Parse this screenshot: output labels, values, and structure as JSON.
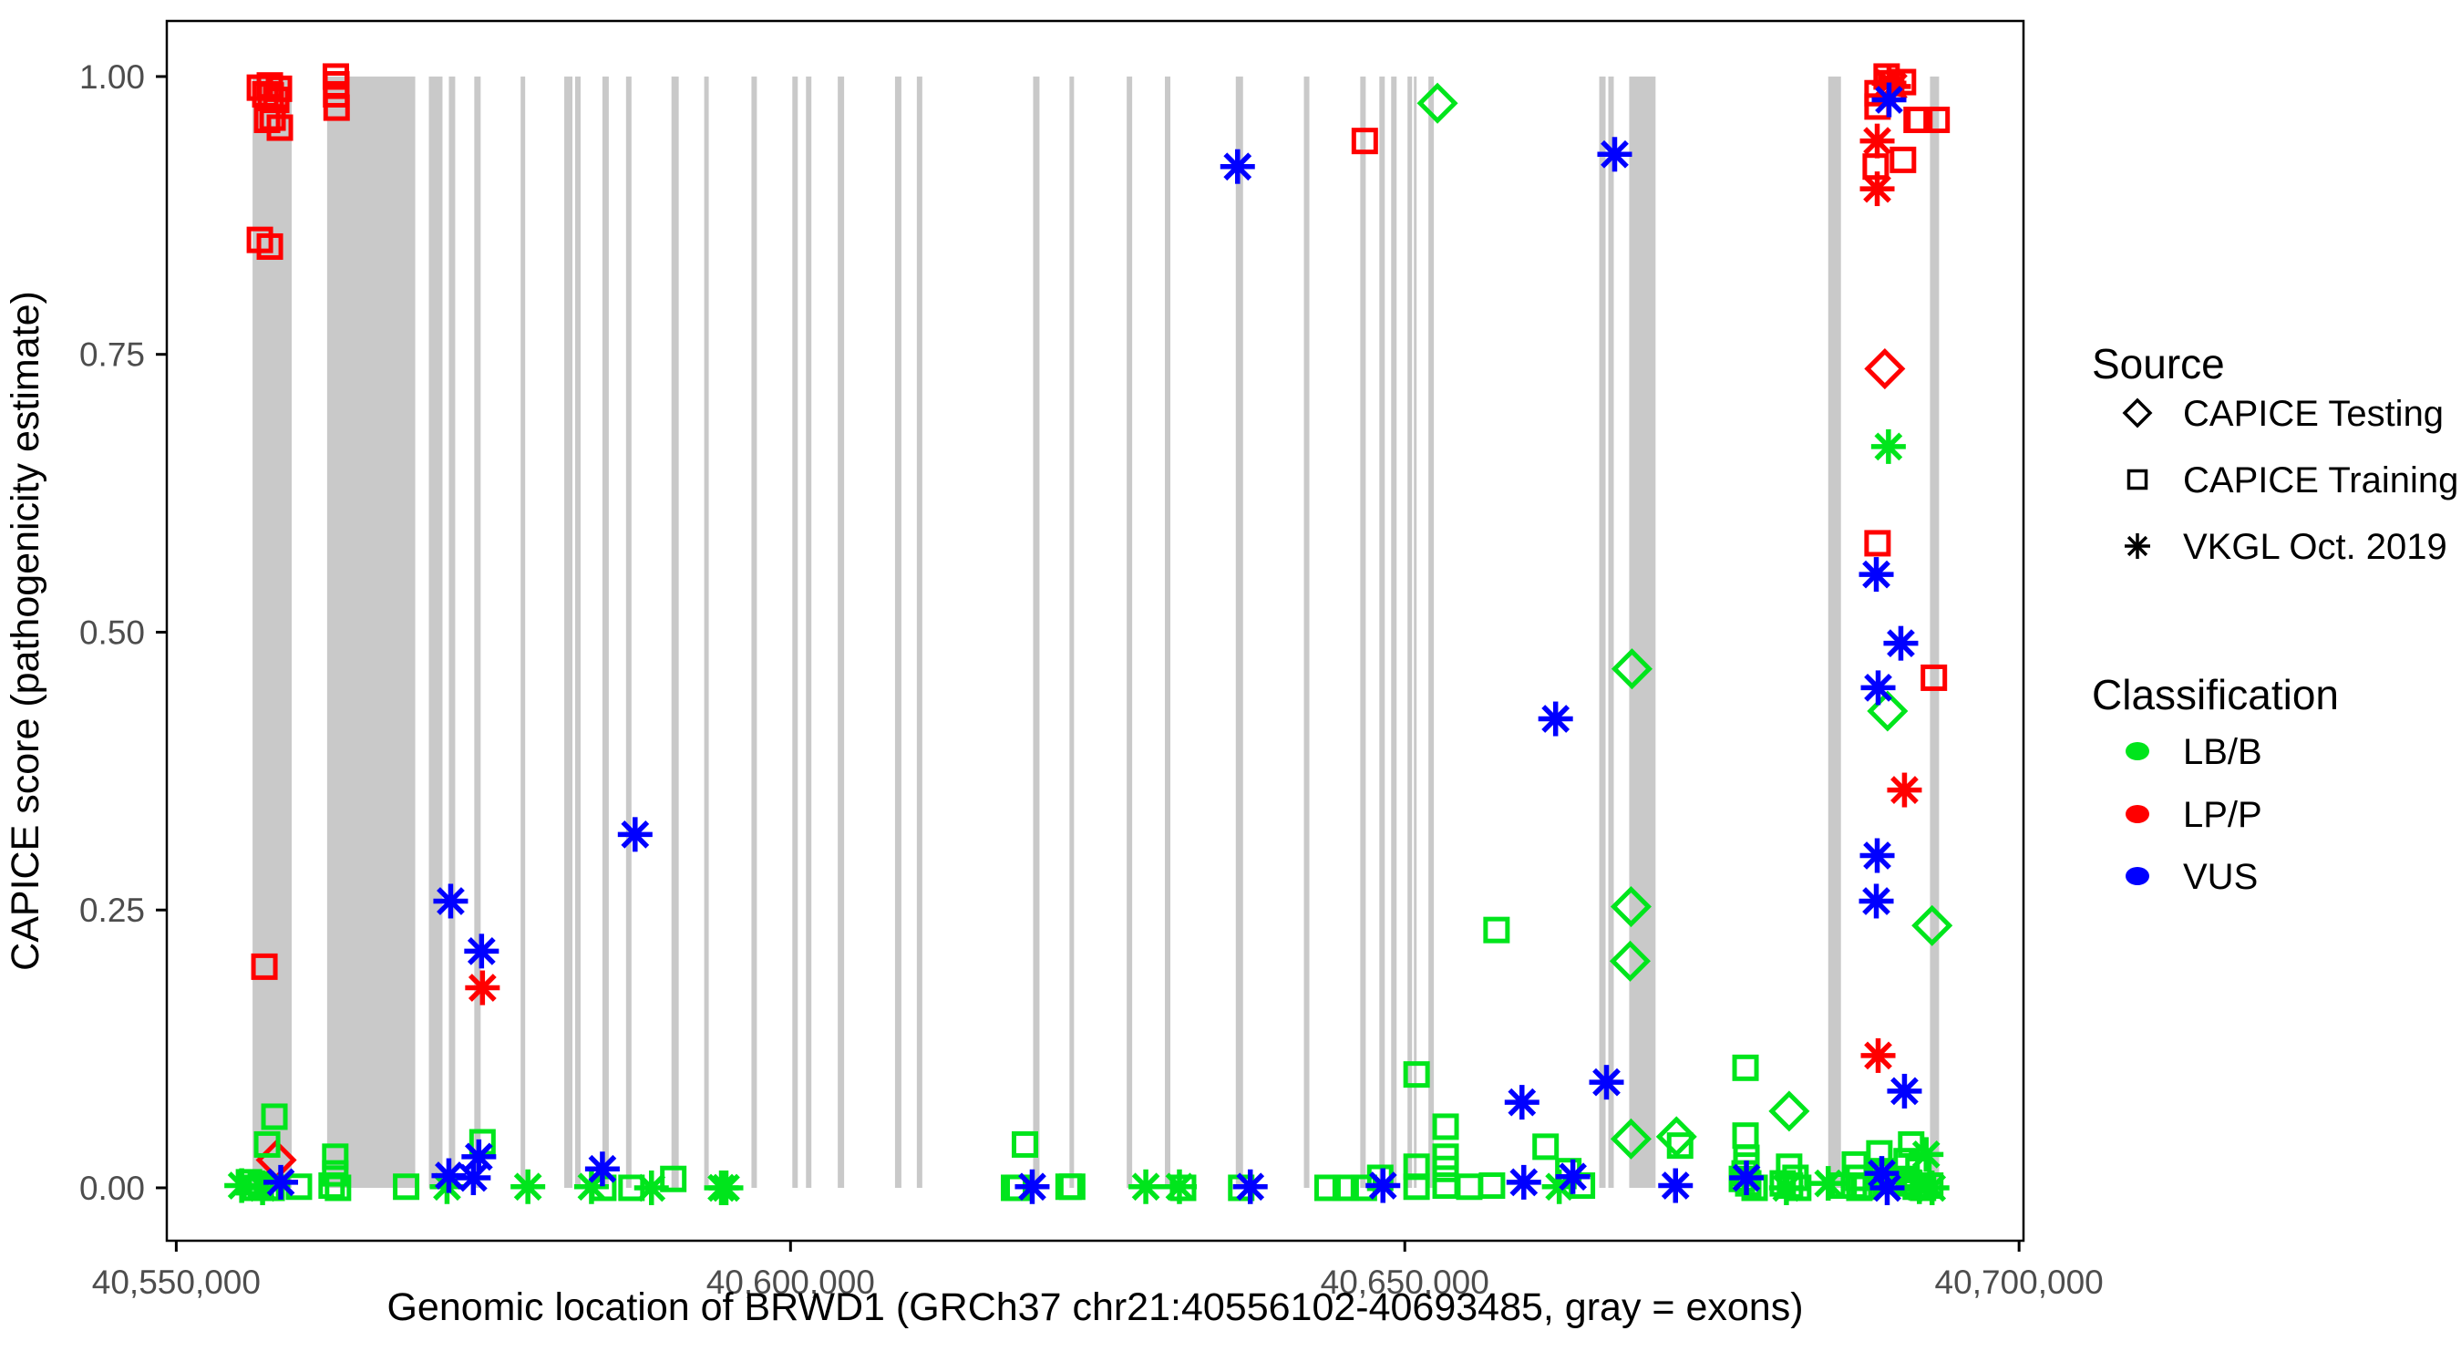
{
  "colors": {
    "lbb": "#00e51c",
    "lpp": "#ff0000",
    "vus": "#0000ff",
    "exon": "#c9c9c9",
    "axis_text": "#4d4d4d",
    "axis_line": "#000000",
    "background": "#ffffff"
  },
  "legend": {
    "source": {
      "title": "Source",
      "items": [
        {
          "label": "CAPICE Testing",
          "marker": "diamond"
        },
        {
          "label": "CAPICE Training",
          "marker": "square"
        },
        {
          "label": "VKGL Oct. 2019",
          "marker": "asterisk"
        }
      ]
    },
    "classification": {
      "title": "Classification",
      "items": [
        {
          "label": "LB/B",
          "color_key": "lbb"
        },
        {
          "label": "LP/P",
          "color_key": "lpp"
        },
        {
          "label": "VUS",
          "color_key": "vus"
        }
      ]
    }
  },
  "chart_data": {
    "type": "scatter",
    "title": "",
    "xlabel": "Genomic location of BRWD1 (GRCh37 chr21:40556102-40693485, gray = exons)",
    "ylabel": "CAPICE score (pathogenicity estimate)",
    "x_axis": {
      "min": 40549230,
      "max": 40700360,
      "ticks": [
        40550000,
        40600000,
        40650000,
        40700000
      ],
      "tick_labels": [
        "40,550,000",
        "40,600,000",
        "40,650,000",
        "40,700,000"
      ]
    },
    "y_axis": {
      "min": -0.0476,
      "max": 1.05,
      "ticks": [
        0.0,
        0.25,
        0.5,
        0.75,
        1.0
      ],
      "tick_labels": [
        "0.00",
        "0.25",
        "0.50",
        "0.75",
        "1.00"
      ]
    },
    "exons_note": "gray vertical bands span score 0 to 1",
    "exons": [
      [
        40556213,
        40559394
      ],
      [
        40562278,
        40569452
      ],
      [
        40570561,
        40571671
      ],
      [
        40572189,
        40572706
      ],
      [
        40574259,
        40574777
      ],
      [
        40578031,
        40578401
      ],
      [
        40581581,
        40582247
      ],
      [
        40582469,
        40582913
      ],
      [
        40584688,
        40585206
      ],
      [
        40586611,
        40587055
      ],
      [
        40590309,
        40590901
      ],
      [
        40592972,
        40593342
      ],
      [
        40596818,
        40597261
      ],
      [
        40600147,
        40600590
      ],
      [
        40601256,
        40601700
      ],
      [
        40603845,
        40604363
      ],
      [
        40608505,
        40609023
      ],
      [
        40610280,
        40610724
      ],
      [
        40619747,
        40620265
      ],
      [
        40622706,
        40623076
      ],
      [
        40627366,
        40627810
      ],
      [
        40630473,
        40630917
      ],
      [
        40636242,
        40636834
      ],
      [
        40641789,
        40642233
      ],
      [
        40646375,
        40646819
      ],
      [
        40647928,
        40648372
      ],
      [
        40648890,
        40649334
      ],
      [
        40650221,
        40650591
      ],
      [
        40650739,
        40650961
      ],
      [
        40651922,
        40652366
      ],
      [
        40665826,
        40666344
      ],
      [
        40666566,
        40667010
      ],
      [
        40668267,
        40670412
      ],
      [
        40684466,
        40685502
      ],
      [
        40692750,
        40693490
      ]
    ],
    "series": [
      {
        "name": "CAPICE Testing",
        "classification": "LB/B",
        "marker": "diamond",
        "color_key": "lbb",
        "points": [
          [
            40652660,
            0.976
          ],
          [
            40668490,
            0.467
          ],
          [
            40668416,
            0.253
          ],
          [
            40668342,
            0.204
          ],
          [
            40668416,
            0.044
          ],
          [
            40672112,
            0.046
          ],
          [
            40681284,
            0.069
          ],
          [
            40689295,
            0.429
          ],
          [
            40692919,
            0.236
          ]
        ]
      },
      {
        "name": "CAPICE Testing",
        "classification": "LP/P",
        "marker": "diamond",
        "color_key": "lpp",
        "points": [
          [
            40558136,
            0.025
          ],
          [
            40689073,
            0.737
          ]
        ]
      },
      {
        "name": "CAPICE Training",
        "classification": "LB/B",
        "marker": "square",
        "color_key": "lbb",
        "points": [
          [
            40557988,
            0.064
          ],
          [
            40557396,
            0.039
          ],
          [
            40555917,
            0.005
          ],
          [
            40556435,
            0.0
          ],
          [
            40556879,
            0.003
          ],
          [
            40557396,
            0.0
          ],
          [
            40557766,
            0.0
          ],
          [
            40559985,
            0.001
          ],
          [
            40562943,
            0.028
          ],
          [
            40562943,
            0.013
          ],
          [
            40562647,
            0.002
          ],
          [
            40563165,
            0.0
          ],
          [
            40568712,
            0.001
          ],
          [
            40574925,
            0.041
          ],
          [
            40584761,
            0.0
          ],
          [
            40587055,
            0.0
          ],
          [
            40590457,
            0.008
          ],
          [
            40619081,
            0.039
          ],
          [
            40618194,
            0.0
          ],
          [
            40618564,
            0.0
          ],
          [
            40622632,
            0.001
          ],
          [
            40622928,
            0.001
          ],
          [
            40631952,
            0.0
          ],
          [
            40636685,
            0.0
          ],
          [
            40643711,
            0.0
          ],
          [
            40645190,
            0.0
          ],
          [
            40646669,
            0.0
          ],
          [
            40648000,
            0.009
          ],
          [
            40650958,
            0.102
          ],
          [
            40650958,
            0.019
          ],
          [
            40650958,
            0.001
          ],
          [
            40653325,
            0.055
          ],
          [
            40653325,
            0.028
          ],
          [
            40653325,
            0.017
          ],
          [
            40653325,
            0.002
          ],
          [
            40655248,
            0.001
          ],
          [
            40657097,
            0.002
          ],
          [
            40657467,
            0.232
          ],
          [
            40661461,
            0.037
          ],
          [
            40663311,
            0.015
          ],
          [
            40664420,
            0.002
          ],
          [
            40672408,
            0.038
          ],
          [
            40677734,
            0.108
          ],
          [
            40677734,
            0.047
          ],
          [
            40677808,
            0.027
          ],
          [
            40677808,
            0.02
          ],
          [
            40677438,
            0.008
          ],
          [
            40677956,
            0.004
          ],
          [
            40678474,
            0.0
          ],
          [
            40677660,
            0.013
          ],
          [
            40681284,
            0.019
          ],
          [
            40680766,
            0.004
          ],
          [
            40681358,
            0.002
          ],
          [
            40681802,
            0.009
          ],
          [
            40682024,
            0.0
          ],
          [
            40685724,
            0.002
          ],
          [
            40688629,
            0.031
          ],
          [
            40686632,
            0.021
          ],
          [
            40686928,
            0.009
          ],
          [
            40686558,
            0.002
          ],
          [
            40687372,
            0.001
          ],
          [
            40687002,
            0.0
          ],
          [
            40688851,
            0.015
          ],
          [
            40689221,
            0.006
          ],
          [
            40689591,
            0.006
          ],
          [
            40691218,
            0.039
          ],
          [
            40690848,
            0.024
          ],
          [
            40691810,
            0.016
          ],
          [
            40690552,
            0.008
          ],
          [
            40691070,
            0.004
          ],
          [
            40691588,
            0.001
          ],
          [
            40692180,
            0.0
          ],
          [
            40692772,
            0.002
          ]
        ]
      },
      {
        "name": "CAPICE Training",
        "classification": "LP/P",
        "marker": "square",
        "color_key": "lpp",
        "points": [
          [
            40556805,
            0.99
          ],
          [
            40557618,
            0.992
          ],
          [
            40558358,
            0.989
          ],
          [
            40557248,
            0.984
          ],
          [
            40557692,
            0.983
          ],
          [
            40558136,
            0.979
          ],
          [
            40557840,
            0.963
          ],
          [
            40557396,
            0.961
          ],
          [
            40558432,
            0.954
          ],
          [
            40556805,
            0.853
          ],
          [
            40557618,
            0.847
          ],
          [
            40557174,
            0.199
          ],
          [
            40562990,
            1.0
          ],
          [
            40563030,
            0.993
          ],
          [
            40563010,
            0.984
          ],
          [
            40563050,
            0.972
          ],
          [
            40646743,
            0.942
          ],
          [
            40689221,
            1.0
          ],
          [
            40690552,
            0.995
          ],
          [
            40689591,
            0.994
          ],
          [
            40688481,
            0.985
          ],
          [
            40688481,
            0.973
          ],
          [
            40691662,
            0.961
          ],
          [
            40691884,
            0.961
          ],
          [
            40693289,
            0.961
          ],
          [
            40690552,
            0.925
          ],
          [
            40688333,
            0.919
          ],
          [
            40688481,
            0.58
          ],
          [
            40693067,
            0.459
          ]
        ]
      },
      {
        "name": "VKGL Oct. 2019",
        "classification": "LB/B",
        "marker": "asterisk",
        "color_key": "lbb",
        "points": [
          [
            40555325,
            0.002
          ],
          [
            40557026,
            0.0
          ],
          [
            40572041,
            0.001
          ],
          [
            40578623,
            0.001
          ],
          [
            40583799,
            0.001
          ],
          [
            40588682,
            0.0
          ],
          [
            40594377,
            0.0
          ],
          [
            40594747,
            0.0
          ],
          [
            40628919,
            0.001
          ],
          [
            40631656,
            0.001
          ],
          [
            40662571,
            0.001
          ],
          [
            40681062,
            0.0
          ],
          [
            40684466,
            0.004
          ],
          [
            40689369,
            0.667
          ],
          [
            40692438,
            0.03
          ],
          [
            40691884,
            0.001
          ],
          [
            40692919,
            0.0
          ]
        ]
      },
      {
        "name": "VKGL Oct. 2019",
        "classification": "LP/P",
        "marker": "asterisk",
        "color_key": "lpp",
        "points": [
          [
            40574925,
            0.18
          ],
          [
            40689416,
            0.994
          ],
          [
            40689786,
            0.991
          ],
          [
            40688454,
            0.942
          ],
          [
            40688454,
            0.899
          ],
          [
            40690674,
            0.358
          ],
          [
            40688528,
            0.119
          ]
        ]
      },
      {
        "name": "VKGL Oct. 2019",
        "classification": "VUS",
        "marker": "asterisk",
        "color_key": "vus",
        "points": [
          [
            40558506,
            0.005
          ],
          [
            40572189,
            0.011
          ],
          [
            40572337,
            0.258
          ],
          [
            40574851,
            0.213
          ],
          [
            40574629,
            0.028
          ],
          [
            40574185,
            0.009
          ],
          [
            40584687,
            0.017
          ],
          [
            40587350,
            0.318
          ],
          [
            40619673,
            0.001
          ],
          [
            40636389,
            0.919
          ],
          [
            40637424,
            0.001
          ],
          [
            40648222,
            0.002
          ],
          [
            40659686,
            0.005
          ],
          [
            40659538,
            0.077
          ],
          [
            40662275,
            0.422
          ],
          [
            40663680,
            0.01
          ],
          [
            40666417,
            0.095
          ],
          [
            40667083,
            0.93
          ],
          [
            40672038,
            0.002
          ],
          [
            40677808,
            0.009
          ],
          [
            40688380,
            0.552
          ],
          [
            40690378,
            0.49
          ],
          [
            40688528,
            0.45
          ],
          [
            40688454,
            0.299
          ],
          [
            40688380,
            0.258
          ],
          [
            40689416,
            0.979
          ],
          [
            40690674,
            0.087
          ],
          [
            40688824,
            0.013
          ],
          [
            40689268,
            0.0
          ]
        ]
      }
    ]
  }
}
